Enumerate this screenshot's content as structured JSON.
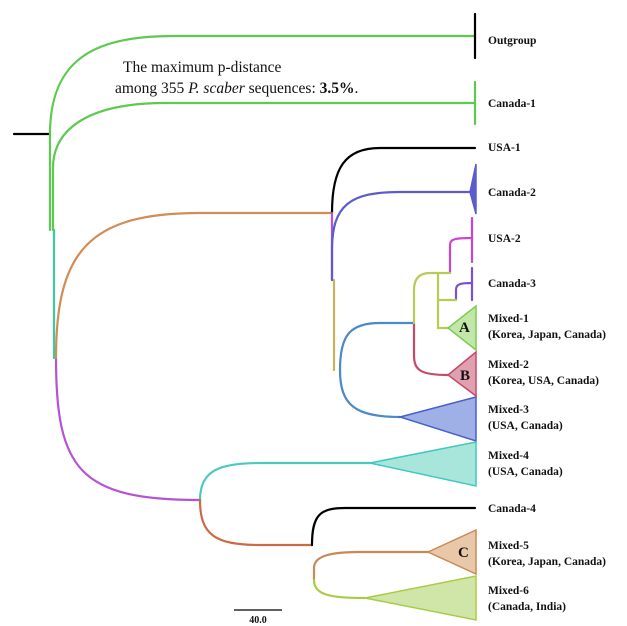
{
  "note": {
    "line1": "The maximum p-distance",
    "line2_prefix": "among 355 ",
    "line2_species": "P. scaber",
    "line2_mid": " sequences: ",
    "line2_value": "3.5%",
    "line2_suffix": "."
  },
  "tips": [
    {
      "id": "outgroup",
      "lines": [
        "Outgroup"
      ]
    },
    {
      "id": "canada-1",
      "lines": [
        "Canada-1"
      ]
    },
    {
      "id": "usa-1",
      "lines": [
        "USA-1"
      ]
    },
    {
      "id": "canada-2",
      "lines": [
        "Canada-2"
      ]
    },
    {
      "id": "usa-2",
      "lines": [
        "USA-2"
      ]
    },
    {
      "id": "canada-3",
      "lines": [
        "Canada-3"
      ]
    },
    {
      "id": "mixed-1",
      "lines": [
        "Mixed-1",
        "(Korea, Japan, Canada)"
      ]
    },
    {
      "id": "mixed-2",
      "lines": [
        "Mixed-2",
        "(Korea, USA, Canada)"
      ]
    },
    {
      "id": "mixed-3",
      "lines": [
        "Mixed-3",
        "(USA, Canada)"
      ]
    },
    {
      "id": "mixed-4",
      "lines": [
        "Mixed-4",
        "(USA, Canada)"
      ]
    },
    {
      "id": "canada-4",
      "lines": [
        "Canada-4"
      ]
    },
    {
      "id": "mixed-5",
      "lines": [
        "Mixed-5",
        "(Korea, Japan, Canada)"
      ]
    },
    {
      "id": "mixed-6",
      "lines": [
        "Mixed-6",
        "(Canada, India)"
      ]
    }
  ],
  "clade_letters": [
    "A",
    "B",
    "C"
  ],
  "scale_bar": {
    "label": "40.0",
    "value": 40.0
  },
  "colors": {
    "root": "#000000",
    "green": "#5cc94f",
    "teal": "#3ec9a0",
    "purple": "#b552d6",
    "orange": "#d08d55",
    "black": "#000000",
    "blue_violet": "#5b5ccc",
    "olive": "#c8b45a",
    "steel_blue": "#4a8ac8",
    "magenta": "#cc44cc",
    "violet": "#7c52c8",
    "lime": "#b8cc55",
    "crimson": "#c44a6a",
    "cyan": "#4cc9bf",
    "rust": "#cc6a45",
    "yellow_green": "#a8cc44",
    "mixed1_fill": "#c2e8a8",
    "mixed1_stroke": "#7cc95c",
    "mixed2_fill": "#e0a0b0",
    "mixed2_stroke": "#c44a6a",
    "mixed3_fill": "#9fb0e6",
    "mixed3_stroke": "#4a5ecc",
    "mixed4_fill": "#a8e6dc",
    "mixed4_stroke": "#3ec9bf",
    "mixed5_fill": "#e8c8a8",
    "mixed5_stroke": "#c88a55",
    "mixed6_fill": "#d0e6a8",
    "mixed6_stroke": "#a8cc44"
  }
}
